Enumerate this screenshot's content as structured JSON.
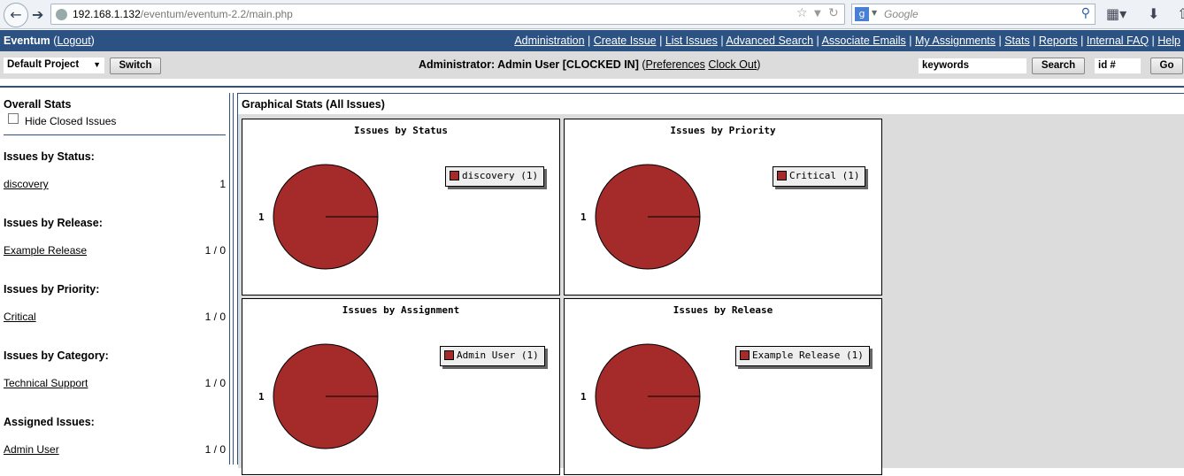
{
  "browser": {
    "url_host": "192.168.1.132",
    "url_path": "/eventum/eventum-2.2/main.php",
    "search_placeholder": "Google"
  },
  "nav": {
    "brand": "Eventum",
    "logout": "Logout",
    "links": [
      "Administration",
      "Create Issue",
      "List Issues",
      "Advanced Search",
      "Associate Emails",
      "My Assignments",
      "Stats",
      "Reports",
      "Internal FAQ",
      "Help"
    ]
  },
  "toolbar": {
    "project": "Default Project",
    "switch": "Switch",
    "role": "Administrator: Admin User [CLOCKED IN]",
    "preferences": "Preferences",
    "clock_out": "Clock Out",
    "keywords": "keywords",
    "search": "Search",
    "id_placeholder": "id #",
    "go": "Go"
  },
  "left": {
    "overall": "Overall Stats",
    "hide_closed": "Hide Closed Issues",
    "sections": [
      {
        "title": "Issues by Status:",
        "item": "discovery",
        "value": "1"
      },
      {
        "title": "Issues by Release:",
        "item": "Example Release",
        "value": "1 / 0"
      },
      {
        "title": "Issues by Priority:",
        "item": "Critical",
        "value": "1 / 0"
      },
      {
        "title": "Issues by Category:",
        "item": "Technical Support",
        "value": "1 / 0"
      },
      {
        "title": "Assigned Issues:",
        "item": "Admin User",
        "value": "1 / 0"
      }
    ]
  },
  "main": {
    "title": "Graphical Stats (All Issues)"
  },
  "chart_data": [
    {
      "type": "pie",
      "title": "Issues by Status",
      "categories": [
        "discovery"
      ],
      "values": [
        1
      ],
      "legend": [
        "discovery (1)"
      ],
      "slice_labels": [
        "1"
      ],
      "colors": [
        "#a52a2a"
      ]
    },
    {
      "type": "pie",
      "title": "Issues by Priority",
      "categories": [
        "Critical"
      ],
      "values": [
        1
      ],
      "legend": [
        "Critical (1)"
      ],
      "slice_labels": [
        "1"
      ],
      "colors": [
        "#a52a2a"
      ]
    },
    {
      "type": "pie",
      "title": "Issues by Assignment",
      "categories": [
        "Admin User"
      ],
      "values": [
        1
      ],
      "legend": [
        "Admin User (1)"
      ],
      "slice_labels": [
        "1"
      ],
      "colors": [
        "#a52a2a"
      ]
    },
    {
      "type": "pie",
      "title": "Issues by Release",
      "categories": [
        "Example Release"
      ],
      "values": [
        1
      ],
      "legend": [
        "Example Release (1)"
      ],
      "slice_labels": [
        "1"
      ],
      "colors": [
        "#a52a2a"
      ]
    }
  ]
}
